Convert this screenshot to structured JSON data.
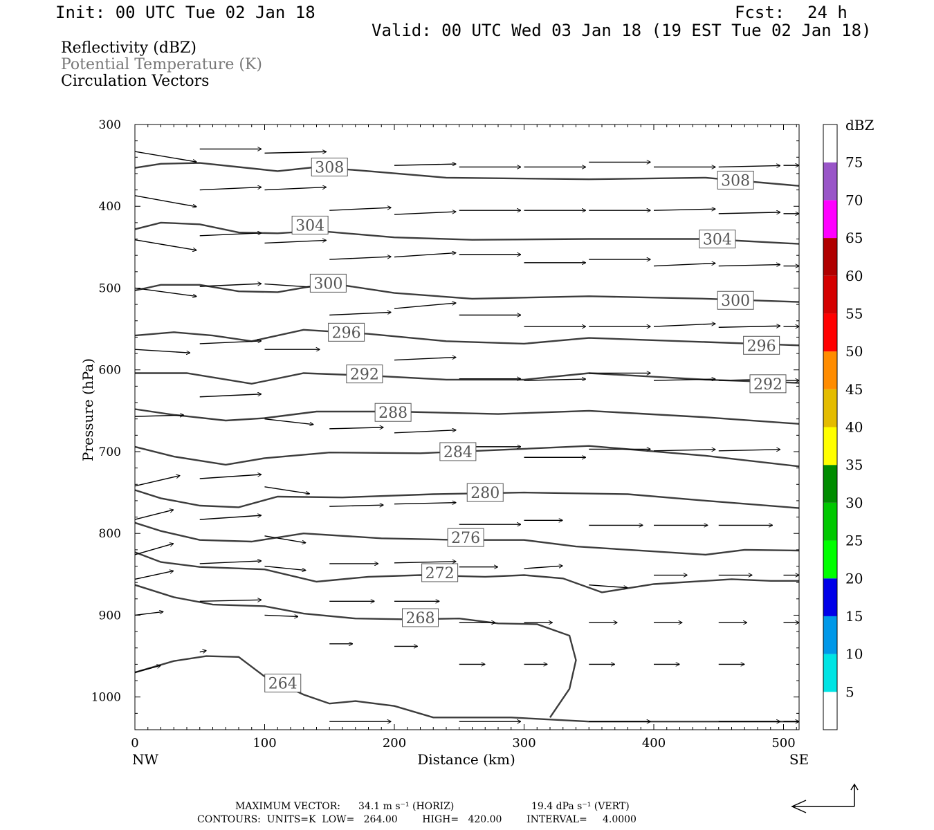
{
  "header": {
    "init": "Init: 00 UTC Tue 02 Jan 18",
    "fcst_label": "Fcst:",
    "fcst_value": "24 h",
    "valid": "Valid: 00 UTC Wed 03 Jan 18 (19 EST Tue 02 Jan 18)"
  },
  "fields": {
    "reflectivity": "Reflectivity (dBZ)",
    "theta": "Potential Temperature (K)",
    "vectors": "Circulation Vectors"
  },
  "footer": {
    "max_vector_label": "MAXIMUM VECTOR:",
    "max_horiz": "34.1 m s⁻¹ (HORIZ)",
    "max_vert": "19.4 dPa s⁻¹ (VERT)",
    "contours": "CONTOURS:  UNITS=K  LOW=   264.00        HIGH=   420.00        INTERVAL=     4.0000"
  },
  "colors": {
    "contour": "#3c3c3c",
    "label_border": "#555555",
    "label_text": "#555555"
  },
  "chart_data": {
    "type": "line",
    "xlabel": "Distance (km)",
    "ylabel": "Pressure (hPa)",
    "xlim": [
      0,
      512
    ],
    "ylim": [
      1040,
      300
    ],
    "x_ticks": [
      "0",
      "100",
      "200",
      "300",
      "400",
      "500"
    ],
    "x_tick_values": [
      0,
      100,
      200,
      300,
      400,
      500
    ],
    "x_end_labels": {
      "left": "NW",
      "right": "SE"
    },
    "y_ticks": [
      "300",
      "400",
      "500",
      "600",
      "700",
      "800",
      "900",
      "1000"
    ],
    "y_tick_values": [
      300,
      400,
      500,
      600,
      700,
      800,
      900,
      1000
    ],
    "contour_lines": [
      {
        "label": "308",
        "points": [
          [
            0,
            353
          ],
          [
            20,
            348
          ],
          [
            50,
            347
          ],
          [
            80,
            352
          ],
          [
            110,
            357
          ],
          [
            140,
            352
          ],
          [
            180,
            357
          ],
          [
            240,
            365
          ],
          [
            350,
            367
          ],
          [
            440,
            365
          ],
          [
            512,
            375
          ]
        ],
        "labels_at": [
          [
            150,
            352
          ],
          [
            463,
            368
          ]
        ]
      },
      {
        "label": "304",
        "points": [
          [
            0,
            428
          ],
          [
            20,
            420
          ],
          [
            50,
            422
          ],
          [
            80,
            432
          ],
          [
            110,
            433
          ],
          [
            140,
            430
          ],
          [
            200,
            438
          ],
          [
            260,
            441
          ],
          [
            350,
            440
          ],
          [
            440,
            440
          ],
          [
            512,
            446
          ]
        ],
        "labels_at": [
          [
            135,
            423
          ],
          [
            449,
            440
          ]
        ]
      },
      {
        "label": "300",
        "points": [
          [
            0,
            503
          ],
          [
            20,
            496
          ],
          [
            50,
            496
          ],
          [
            80,
            504
          ],
          [
            110,
            505
          ],
          [
            150,
            494
          ],
          [
            200,
            506
          ],
          [
            260,
            513
          ],
          [
            350,
            510
          ],
          [
            440,
            513
          ],
          [
            512,
            517
          ]
        ],
        "labels_at": [
          [
            149,
            494
          ],
          [
            463,
            515
          ]
        ]
      },
      {
        "label": "296",
        "points": [
          [
            0,
            558
          ],
          [
            30,
            554
          ],
          [
            60,
            558
          ],
          [
            90,
            565
          ],
          [
            130,
            551
          ],
          [
            180,
            556
          ],
          [
            240,
            565
          ],
          [
            300,
            568
          ],
          [
            350,
            561
          ],
          [
            440,
            566
          ],
          [
            512,
            570
          ]
        ],
        "labels_at": [
          [
            163,
            554
          ],
          [
            483,
            570
          ]
        ]
      },
      {
        "label": "292",
        "points": [
          [
            0,
            604
          ],
          [
            40,
            604
          ],
          [
            90,
            617
          ],
          [
            130,
            604
          ],
          [
            180,
            607
          ],
          [
            240,
            612
          ],
          [
            300,
            612
          ],
          [
            350,
            604
          ],
          [
            440,
            612
          ],
          [
            512,
            616
          ]
        ],
        "labels_at": [
          [
            177,
            605
          ],
          [
            488,
            617
          ]
        ]
      },
      {
        "label": "288",
        "points": [
          [
            0,
            648
          ],
          [
            30,
            655
          ],
          [
            70,
            662
          ],
          [
            100,
            659
          ],
          [
            140,
            651
          ],
          [
            200,
            651
          ],
          [
            280,
            654
          ],
          [
            350,
            650
          ],
          [
            440,
            658
          ],
          [
            512,
            666
          ]
        ],
        "labels_at": [
          [
            199,
            652
          ]
        ]
      },
      {
        "label": "284",
        "points": [
          [
            0,
            694
          ],
          [
            30,
            706
          ],
          [
            70,
            716
          ],
          [
            100,
            708
          ],
          [
            150,
            701
          ],
          [
            220,
            702
          ],
          [
            280,
            698
          ],
          [
            350,
            693
          ],
          [
            440,
            705
          ],
          [
            512,
            718
          ]
        ],
        "labels_at": [
          [
            249,
            700
          ]
        ]
      },
      {
        "label": "280",
        "points": [
          [
            0,
            747
          ],
          [
            20,
            757
          ],
          [
            50,
            766
          ],
          [
            80,
            768
          ],
          [
            110,
            755
          ],
          [
            160,
            756
          ],
          [
            230,
            752
          ],
          [
            300,
            750
          ],
          [
            380,
            752
          ],
          [
            440,
            760
          ],
          [
            512,
            769
          ]
        ],
        "labels_at": [
          [
            270,
            750
          ]
        ]
      },
      {
        "label": "276",
        "points": [
          [
            0,
            787
          ],
          [
            20,
            797
          ],
          [
            50,
            808
          ],
          [
            90,
            810
          ],
          [
            130,
            800
          ],
          [
            190,
            806
          ],
          [
            250,
            808
          ],
          [
            300,
            808
          ],
          [
            340,
            816
          ],
          [
            400,
            822
          ],
          [
            440,
            826
          ],
          [
            470,
            820
          ],
          [
            512,
            821
          ]
        ],
        "labels_at": [
          [
            255,
            805
          ]
        ]
      },
      {
        "label": "272",
        "points": [
          [
            0,
            823
          ],
          [
            20,
            835
          ],
          [
            50,
            841
          ],
          [
            100,
            844
          ],
          [
            140,
            859
          ],
          [
            180,
            853
          ],
          [
            220,
            851
          ],
          [
            270,
            853
          ],
          [
            300,
            851
          ],
          [
            330,
            855
          ],
          [
            360,
            872
          ],
          [
            400,
            862
          ],
          [
            460,
            856
          ],
          [
            490,
            858
          ],
          [
            512,
            858
          ]
        ],
        "labels_at": [
          [
            235,
            848
          ]
        ]
      },
      {
        "label": "268",
        "points": [
          [
            0,
            863
          ],
          [
            30,
            878
          ],
          [
            60,
            887
          ],
          [
            100,
            889
          ],
          [
            130,
            898
          ],
          [
            170,
            904
          ],
          [
            210,
            905
          ],
          [
            250,
            904
          ],
          [
            280,
            910
          ],
          [
            310,
            911
          ],
          [
            335,
            925
          ],
          [
            340,
            955
          ],
          [
            335,
            990
          ],
          [
            320,
            1025
          ]
        ],
        "labels_at": [
          [
            220,
            903
          ]
        ]
      },
      {
        "label": "264",
        "points": [
          [
            0,
            970
          ],
          [
            30,
            956
          ],
          [
            55,
            950
          ],
          [
            80,
            951
          ],
          [
            100,
            975
          ],
          [
            130,
            997
          ],
          [
            150,
            1008
          ],
          [
            170,
            1005
          ],
          [
            200,
            1011
          ],
          [
            230,
            1025
          ],
          [
            290,
            1025
          ],
          [
            350,
            1030
          ],
          [
            440,
            1030
          ],
          [
            512,
            1030
          ]
        ],
        "labels_at": [
          [
            114,
            983
          ]
        ]
      }
    ],
    "vectors": [
      [
        0,
        333,
        48,
        15
      ],
      [
        0,
        387,
        48,
        16
      ],
      [
        0,
        441,
        48,
        15
      ],
      [
        0,
        500,
        48,
        12
      ],
      [
        0,
        575,
        43,
        5
      ],
      [
        0,
        657,
        38,
        -2
      ],
      [
        0,
        742,
        35,
        -15
      ],
      [
        0,
        783,
        30,
        -14
      ],
      [
        0,
        826,
        30,
        -16
      ],
      [
        0,
        856,
        30,
        -12
      ],
      [
        0,
        900,
        22,
        -5
      ],
      [
        0,
        970,
        20,
        -10
      ],
      [
        50,
        330,
        48,
        0
      ],
      [
        50,
        380,
        48,
        -4
      ],
      [
        50,
        436,
        48,
        -4
      ],
      [
        50,
        498,
        48,
        -4
      ],
      [
        50,
        568,
        48,
        -4
      ],
      [
        50,
        633,
        48,
        -4
      ],
      [
        50,
        733,
        48,
        -6
      ],
      [
        50,
        783,
        48,
        -6
      ],
      [
        50,
        837,
        48,
        -4
      ],
      [
        50,
        883,
        48,
        -2
      ],
      [
        50,
        945,
        5,
        -2
      ],
      [
        100,
        335,
        48,
        -2
      ],
      [
        100,
        380,
        48,
        -4
      ],
      [
        100,
        445,
        48,
        -4
      ],
      [
        100,
        495,
        48,
        6
      ],
      [
        100,
        575,
        43,
        0
      ],
      [
        100,
        660,
        38,
        8
      ],
      [
        100,
        743,
        35,
        10
      ],
      [
        100,
        803,
        32,
        10
      ],
      [
        100,
        840,
        32,
        6
      ],
      [
        100,
        900,
        26,
        2
      ],
      [
        150,
        405,
        48,
        -4
      ],
      [
        150,
        465,
        48,
        -4
      ],
      [
        150,
        533,
        48,
        -4
      ],
      [
        150,
        672,
        42,
        -2
      ],
      [
        150,
        767,
        42,
        -2
      ],
      [
        150,
        837,
        38,
        0
      ],
      [
        150,
        883,
        35,
        0
      ],
      [
        150,
        935,
        18,
        0
      ],
      [
        200,
        350,
        48,
        -2
      ],
      [
        200,
        410,
        48,
        -4
      ],
      [
        200,
        462,
        48,
        -6
      ],
      [
        200,
        525,
        48,
        -8
      ],
      [
        200,
        588,
        48,
        -4
      ],
      [
        200,
        677,
        48,
        -4
      ],
      [
        200,
        764,
        48,
        -2
      ],
      [
        200,
        836,
        48,
        -2
      ],
      [
        200,
        883,
        35,
        0
      ],
      [
        200,
        938,
        18,
        0
      ],
      [
        250,
        352,
        48,
        0
      ],
      [
        250,
        405,
        48,
        0
      ],
      [
        250,
        459,
        48,
        0
      ],
      [
        250,
        533,
        48,
        0
      ],
      [
        250,
        611,
        48,
        0
      ],
      [
        250,
        694,
        48,
        0
      ],
      [
        250,
        789,
        48,
        0
      ],
      [
        250,
        841,
        30,
        0
      ],
      [
        250,
        909,
        28,
        0
      ],
      [
        250,
        960,
        20,
        0
      ],
      [
        300,
        352,
        48,
        0
      ],
      [
        300,
        405,
        48,
        0
      ],
      [
        300,
        469,
        48,
        0
      ],
      [
        300,
        547,
        48,
        0
      ],
      [
        300,
        613,
        48,
        -2
      ],
      [
        300,
        707,
        48,
        0
      ],
      [
        300,
        784,
        30,
        0
      ],
      [
        300,
        843,
        30,
        -4
      ],
      [
        300,
        909,
        22,
        0
      ],
      [
        300,
        960,
        18,
        0
      ],
      [
        350,
        346,
        48,
        0
      ],
      [
        350,
        405,
        48,
        0
      ],
      [
        350,
        465,
        48,
        0
      ],
      [
        350,
        547,
        48,
        0
      ],
      [
        350,
        604,
        48,
        0
      ],
      [
        350,
        697,
        48,
        0
      ],
      [
        350,
        790,
        42,
        0
      ],
      [
        350,
        863,
        30,
        4
      ],
      [
        350,
        909,
        22,
        0
      ],
      [
        350,
        960,
        20,
        0
      ],
      [
        400,
        352,
        48,
        0
      ],
      [
        400,
        405,
        48,
        -2
      ],
      [
        400,
        473,
        48,
        -4
      ],
      [
        400,
        547,
        48,
        -4
      ],
      [
        400,
        613,
        48,
        -2
      ],
      [
        400,
        699,
        48,
        -2
      ],
      [
        400,
        790,
        42,
        0
      ],
      [
        400,
        851,
        26,
        0
      ],
      [
        400,
        909,
        22,
        0
      ],
      [
        400,
        960,
        20,
        0
      ],
      [
        450,
        352,
        48,
        -2
      ],
      [
        450,
        409,
        48,
        -2
      ],
      [
        450,
        473,
        48,
        -2
      ],
      [
        450,
        548,
        48,
        -2
      ],
      [
        450,
        613,
        48,
        -2
      ],
      [
        450,
        699,
        48,
        -2
      ],
      [
        450,
        790,
        42,
        0
      ],
      [
        450,
        851,
        26,
        0
      ],
      [
        450,
        909,
        22,
        0
      ],
      [
        450,
        960,
        20,
        0
      ],
      [
        500,
        350,
        12,
        0
      ],
      [
        500,
        409,
        12,
        0
      ],
      [
        500,
        473,
        12,
        0
      ],
      [
        500,
        547,
        12,
        0
      ],
      [
        500,
        613,
        12,
        0
      ],
      [
        500,
        851,
        12,
        0
      ],
      [
        500,
        909,
        12,
        0
      ],
      [
        500,
        1030,
        12,
        0
      ],
      [
        150,
        1030,
        48,
        0
      ],
      [
        250,
        1030,
        48,
        0
      ],
      [
        350,
        1030,
        48,
        0
      ],
      [
        450,
        1030,
        48,
        0
      ]
    ],
    "colorbar": {
      "label": "dBZ",
      "levels": [
        "5",
        "10",
        "15",
        "20",
        "25",
        "30",
        "35",
        "40",
        "45",
        "50",
        "55",
        "60",
        "65",
        "70",
        "75"
      ],
      "colors": [
        "#ffffff",
        "#00e4e4",
        "#0098e8",
        "#0000e8",
        "#00ff00",
        "#00c800",
        "#008c00",
        "#ffff00",
        "#e4bc00",
        "#ff8c00",
        "#ff0000",
        "#d40000",
        "#b00000",
        "#ff00ff",
        "#9955c8",
        "#ffffff"
      ]
    }
  }
}
